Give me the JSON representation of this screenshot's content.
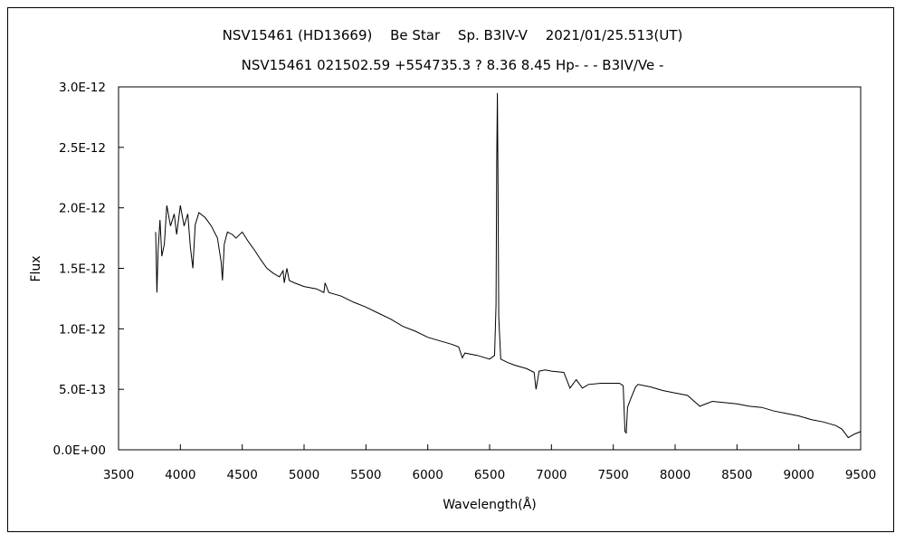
{
  "chart_data": {
    "type": "line",
    "title": "NSV15461 (HD13669)　 Be Star　 Sp. B3IV-V　 2021/01/25.513(UT)",
    "subtitle": "NSV15461 021502.59 +554735.3 ? 8.36 8.45 Hp- - - B3IV/Ve -",
    "xlabel": "Wavelength(Å)",
    "ylabel": "Flux",
    "xlim": [
      3500,
      9500
    ],
    "ylim": [
      0,
      3e-12
    ],
    "xticks": [
      3500,
      4000,
      4500,
      5000,
      5500,
      6000,
      6500,
      7000,
      7500,
      8000,
      8500,
      9000,
      9500
    ],
    "xtick_labels": [
      "3500",
      "4000",
      "4500",
      "5000",
      "5500",
      "6000",
      "6500",
      "7000",
      "7500",
      "8000",
      "8500",
      "9000",
      "9500"
    ],
    "yticks": [
      0,
      5e-13,
      1e-12,
      1.5e-12,
      2e-12,
      2.5e-12,
      3e-12
    ],
    "ytick_labels": [
      "0.0E+00",
      "5.0E-13",
      "1.0E-12",
      "1.5E-12",
      "2.0E-12",
      "2.5E-12",
      "3.0E-12"
    ],
    "grid": false,
    "legend": "none",
    "line_color": "#000000",
    "series": [
      {
        "x": [
          3800,
          3810,
          3820,
          3835,
          3850,
          3870,
          3890,
          3920,
          3950,
          3970,
          4000,
          4030,
          4060,
          4080,
          4101,
          4120,
          4150,
          4200,
          4250,
          4300,
          4330,
          4340,
          4355,
          4380,
          4420,
          4450,
          4500,
          4550,
          4600,
          4650,
          4700,
          4750,
          4800,
          4830,
          4840,
          4861,
          4880,
          4920,
          5000,
          5100,
          5160,
          5170,
          5200,
          5300,
          5400,
          5500,
          5600,
          5700,
          5800,
          5900,
          6000,
          6100,
          6200,
          6250,
          6280,
          6300,
          6400,
          6500,
          6540,
          6552,
          6558,
          6563,
          6568,
          6574,
          6590,
          6650,
          6700,
          6800,
          6860,
          6875,
          6900,
          6950,
          7000,
          7100,
          7150,
          7200,
          7250,
          7300,
          7400,
          7500,
          7550,
          7580,
          7595,
          7605,
          7615,
          7640,
          7680,
          7700,
          7800,
          7900,
          8000,
          8100,
          8200,
          8300,
          8400,
          8500,
          8600,
          8700,
          8800,
          8900,
          9000,
          9100,
          9200,
          9300,
          9350,
          9400,
          9450,
          9500
        ],
        "y": [
          1.8e-12,
          1.3e-12,
          1.65e-12,
          1.9e-12,
          1.6e-12,
          1.7e-12,
          2.02e-12,
          1.85e-12,
          1.95e-12,
          1.78e-12,
          2.02e-12,
          1.85e-12,
          1.95e-12,
          1.68e-12,
          1.5e-12,
          1.86e-12,
          1.96e-12,
          1.92e-12,
          1.85e-12,
          1.75e-12,
          1.55e-12,
          1.4e-12,
          1.7e-12,
          1.8e-12,
          1.78e-12,
          1.75e-12,
          1.8e-12,
          1.72e-12,
          1.65e-12,
          1.57e-12,
          1.5e-12,
          1.46e-12,
          1.43e-12,
          1.48e-12,
          1.38e-12,
          1.5e-12,
          1.4e-12,
          1.38e-12,
          1.35e-12,
          1.33e-12,
          1.3e-12,
          1.38e-12,
          1.3e-12,
          1.27e-12,
          1.22e-12,
          1.18e-12,
          1.13e-12,
          1.08e-12,
          1.02e-12,
          9.8e-13,
          9.3e-13,
          9e-13,
          8.7e-13,
          8.5e-13,
          7.6e-13,
          8e-13,
          7.8e-13,
          7.5e-13,
          7.8e-13,
          1.2e-12,
          2.4e-12,
          2.95e-12,
          2.2e-12,
          1.1e-12,
          7.5e-13,
          7.2e-13,
          7e-13,
          6.7e-13,
          6.4e-13,
          5e-13,
          6.5e-13,
          6.6e-13,
          6.5e-13,
          6.4e-13,
          5.1e-13,
          5.8e-13,
          5.1e-13,
          5.4e-13,
          5.5e-13,
          5.5e-13,
          5.5e-13,
          5.3e-13,
          1.5e-13,
          1.4e-13,
          3.5e-13,
          4.2e-13,
          5.2e-13,
          5.4e-13,
          5.2e-13,
          4.9e-13,
          4.7e-13,
          4.5e-13,
          3.6e-13,
          4e-13,
          3.9e-13,
          3.8e-13,
          3.6e-13,
          3.5e-13,
          3.2e-13,
          3e-13,
          2.8e-13,
          2.5e-13,
          2.3e-13,
          2e-13,
          1.7e-13,
          1e-13,
          1.3e-13,
          1.5e-13
        ]
      }
    ]
  }
}
